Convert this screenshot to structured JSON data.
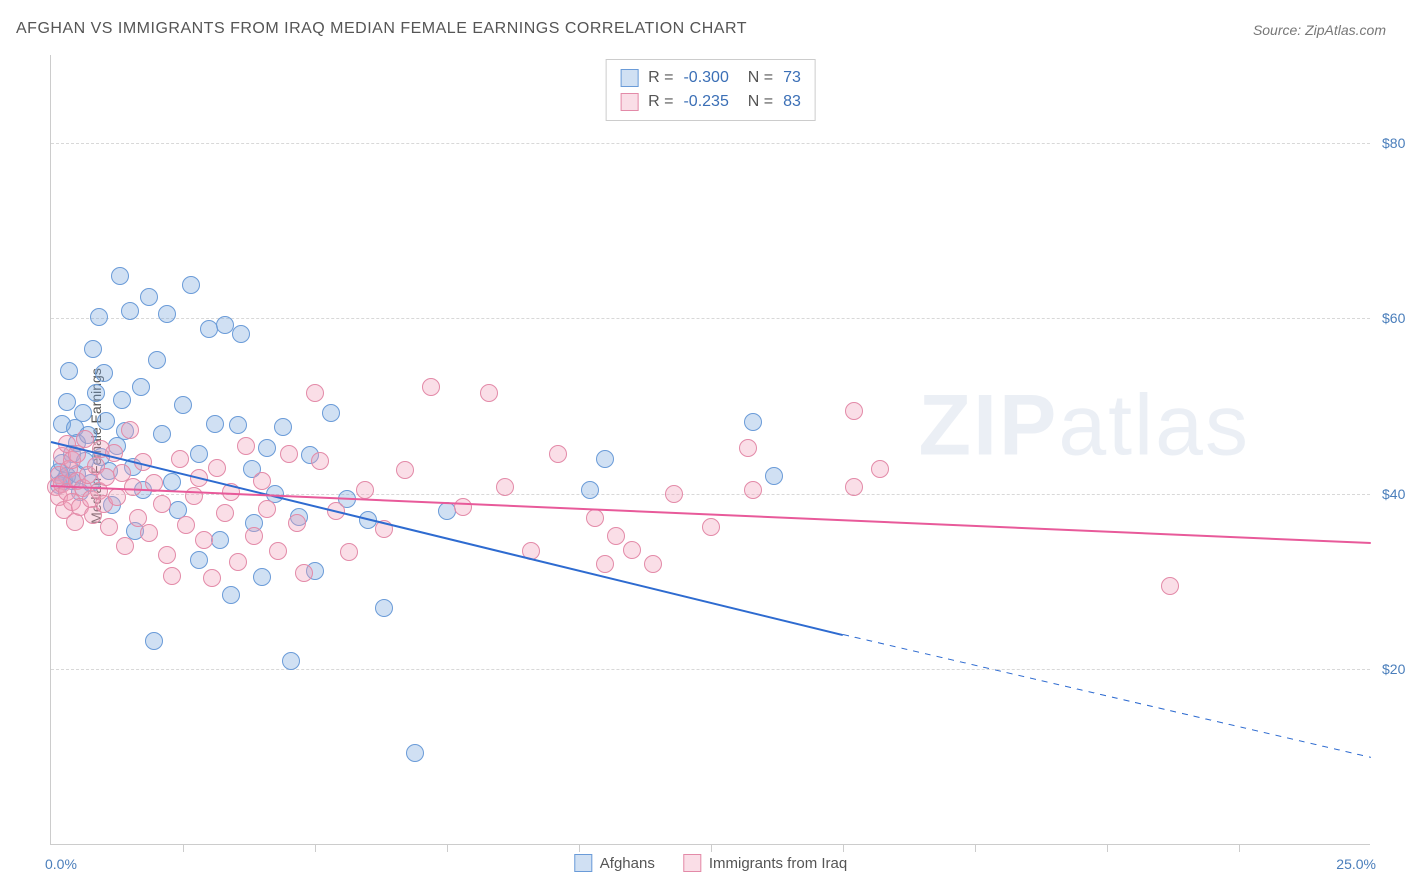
{
  "title": "AFGHAN VS IMMIGRANTS FROM IRAQ MEDIAN FEMALE EARNINGS CORRELATION CHART",
  "source": "Source: ZipAtlas.com",
  "y_axis_title": "Median Female Earnings",
  "watermark": {
    "prefix": "ZIP",
    "suffix": "atlas"
  },
  "chart": {
    "type": "scatter",
    "background_color": "#ffffff",
    "grid_color": "#d8d8d8",
    "axis_color": "#cccccc",
    "tick_label_color": "#4a7ebb",
    "xlim": [
      0,
      25
    ],
    "ylim": [
      0,
      90000
    ],
    "x_tick_positions": [
      2.5,
      5,
      7.5,
      10,
      12.5,
      15,
      17.5,
      20,
      22.5
    ],
    "x_labels": {
      "min": "0.0%",
      "max": "25.0%"
    },
    "y_gridlines": [
      {
        "value": 20000,
        "label": "$20,000"
      },
      {
        "value": 40000,
        "label": "$40,000"
      },
      {
        "value": 60000,
        "label": "$60,000"
      },
      {
        "value": 80000,
        "label": "$80,000"
      }
    ],
    "point_radius": 9,
    "point_stroke_width": 1.5,
    "series": [
      {
        "name": "Afghans",
        "fill": "rgba(120,165,220,0.35)",
        "stroke": "#6a9bd8",
        "trend_stroke": "#2e6bd0",
        "trend_width": 2,
        "r_value": "-0.300",
        "n_value": "73",
        "trend": {
          "x1": 0,
          "y1": 46000,
          "x2_data": 15,
          "x2": 25,
          "y2_data_end": 24000,
          "y2": 10000
        },
        "points": [
          [
            0.15,
            42500
          ],
          [
            0.15,
            41000
          ],
          [
            0.2,
            48000
          ],
          [
            0.2,
            43500
          ],
          [
            0.25,
            41500
          ],
          [
            0.3,
            50500
          ],
          [
            0.3,
            42000
          ],
          [
            0.35,
            54000
          ],
          [
            0.4,
            44500
          ],
          [
            0.4,
            41500
          ],
          [
            0.45,
            47500
          ],
          [
            0.5,
            45800
          ],
          [
            0.5,
            42300
          ],
          [
            0.55,
            40200
          ],
          [
            0.6,
            49200
          ],
          [
            0.65,
            43800
          ],
          [
            0.7,
            46700
          ],
          [
            0.75,
            41200
          ],
          [
            0.8,
            56500
          ],
          [
            0.85,
            51500
          ],
          [
            0.9,
            60200
          ],
          [
            0.95,
            44200
          ],
          [
            1.0,
            53800
          ],
          [
            1.05,
            48300
          ],
          [
            1.1,
            42600
          ],
          [
            1.15,
            38700
          ],
          [
            1.25,
            45500
          ],
          [
            1.3,
            64800
          ],
          [
            1.35,
            50700
          ],
          [
            1.4,
            47200
          ],
          [
            1.5,
            60800
          ],
          [
            1.55,
            43100
          ],
          [
            1.6,
            35800
          ],
          [
            1.7,
            52200
          ],
          [
            1.75,
            40500
          ],
          [
            1.85,
            62400
          ],
          [
            1.95,
            23200
          ],
          [
            2.0,
            55200
          ],
          [
            2.1,
            46800
          ],
          [
            2.2,
            60500
          ],
          [
            2.3,
            41400
          ],
          [
            2.4,
            38200
          ],
          [
            2.5,
            50100
          ],
          [
            2.65,
            63800
          ],
          [
            2.8,
            44600
          ],
          [
            2.8,
            32500
          ],
          [
            3.0,
            58800
          ],
          [
            3.1,
            48000
          ],
          [
            3.2,
            34800
          ],
          [
            3.3,
            59200
          ],
          [
            3.4,
            28500
          ],
          [
            3.55,
            47800
          ],
          [
            3.6,
            58200
          ],
          [
            3.8,
            42800
          ],
          [
            3.85,
            36700
          ],
          [
            4.0,
            30500
          ],
          [
            4.1,
            45200
          ],
          [
            4.25,
            40000
          ],
          [
            4.4,
            47600
          ],
          [
            4.55,
            21000
          ],
          [
            4.7,
            37400
          ],
          [
            4.9,
            44400
          ],
          [
            5.0,
            31200
          ],
          [
            5.3,
            49200
          ],
          [
            5.6,
            39400
          ],
          [
            6.0,
            37000
          ],
          [
            6.3,
            27000
          ],
          [
            6.9,
            10500
          ],
          [
            7.5,
            38000
          ],
          [
            10.2,
            40500
          ],
          [
            10.5,
            44000
          ],
          [
            13.3,
            48200
          ],
          [
            13.7,
            42000
          ]
        ]
      },
      {
        "name": "Immigrants from Iraq",
        "fill": "rgba(240,160,185,0.35)",
        "stroke": "#e38aa8",
        "trend_stroke": "#e85a9a",
        "trend_width": 2,
        "r_value": "-0.235",
        "n_value": "83",
        "trend": {
          "x1": 0,
          "y1": 41000,
          "x2_data": 25,
          "x2": 25,
          "y2_data_end": 34500,
          "y2": 34500
        },
        "points": [
          [
            0.1,
            40800
          ],
          [
            0.15,
            42200
          ],
          [
            0.15,
            39600
          ],
          [
            0.2,
            44300
          ],
          [
            0.2,
            41100
          ],
          [
            0.25,
            38200
          ],
          [
            0.3,
            45700
          ],
          [
            0.3,
            40200
          ],
          [
            0.35,
            42800
          ],
          [
            0.4,
            39100
          ],
          [
            0.4,
            43900
          ],
          [
            0.45,
            36800
          ],
          [
            0.5,
            41500
          ],
          [
            0.5,
            44600
          ],
          [
            0.55,
            38500
          ],
          [
            0.6,
            40700
          ],
          [
            0.65,
            46200
          ],
          [
            0.7,
            42100
          ],
          [
            0.75,
            39400
          ],
          [
            0.8,
            37600
          ],
          [
            0.85,
            43200
          ],
          [
            0.9,
            40300
          ],
          [
            0.95,
            45100
          ],
          [
            1.0,
            38800
          ],
          [
            1.05,
            41900
          ],
          [
            1.1,
            36200
          ],
          [
            1.2,
            44700
          ],
          [
            1.25,
            39700
          ],
          [
            1.35,
            42400
          ],
          [
            1.4,
            34100
          ],
          [
            1.5,
            47300
          ],
          [
            1.55,
            40800
          ],
          [
            1.65,
            37200
          ],
          [
            1.75,
            43600
          ],
          [
            1.85,
            35600
          ],
          [
            1.95,
            41200
          ],
          [
            2.1,
            38900
          ],
          [
            2.2,
            33000
          ],
          [
            2.3,
            30600
          ],
          [
            2.45,
            44000
          ],
          [
            2.55,
            36500
          ],
          [
            2.7,
            39800
          ],
          [
            2.8,
            41800
          ],
          [
            2.9,
            34700
          ],
          [
            3.05,
            30400
          ],
          [
            3.15,
            43000
          ],
          [
            3.3,
            37800
          ],
          [
            3.4,
            40200
          ],
          [
            3.55,
            32200
          ],
          [
            3.7,
            45500
          ],
          [
            3.85,
            35200
          ],
          [
            4.0,
            41500
          ],
          [
            4.1,
            38300
          ],
          [
            4.3,
            33500
          ],
          [
            4.5,
            44600
          ],
          [
            4.65,
            36700
          ],
          [
            4.8,
            31000
          ],
          [
            5.0,
            51500
          ],
          [
            5.1,
            43800
          ],
          [
            5.4,
            38000
          ],
          [
            5.65,
            33400
          ],
          [
            5.95,
            40400
          ],
          [
            6.3,
            36000
          ],
          [
            6.7,
            42700
          ],
          [
            7.2,
            52200
          ],
          [
            7.8,
            38500
          ],
          [
            8.3,
            51500
          ],
          [
            8.6,
            40800
          ],
          [
            9.1,
            33500
          ],
          [
            9.6,
            44600
          ],
          [
            10.3,
            37200
          ],
          [
            10.5,
            32000
          ],
          [
            10.7,
            35200
          ],
          [
            11.0,
            33600
          ],
          [
            11.4,
            32000
          ],
          [
            11.8,
            40000
          ],
          [
            12.5,
            36200
          ],
          [
            13.2,
            45200
          ],
          [
            13.3,
            40500
          ],
          [
            15.2,
            49500
          ],
          [
            15.2,
            40800
          ],
          [
            15.7,
            42800
          ],
          [
            21.2,
            29500
          ]
        ]
      }
    ]
  }
}
